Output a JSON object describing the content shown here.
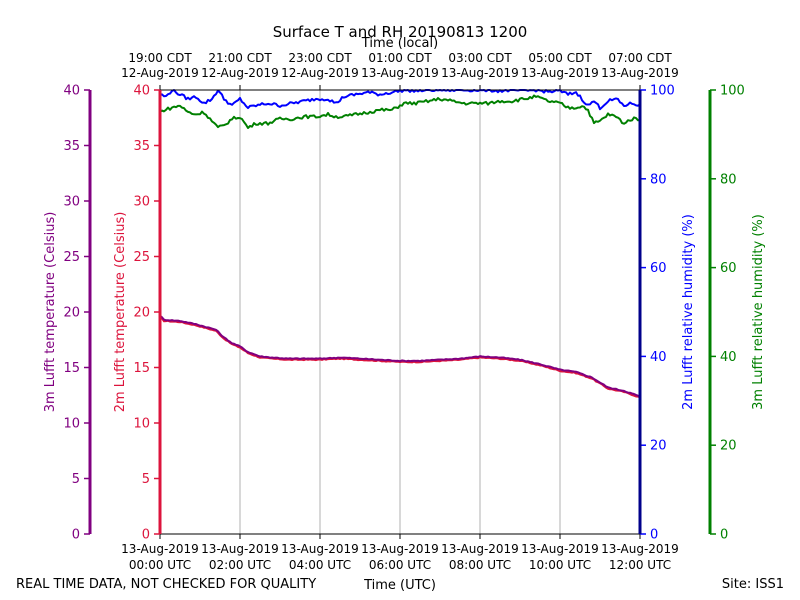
{
  "chart_data": {
    "type": "line",
    "title": "Surface T and RH 20190813 1200",
    "xlabel": "Time (UTC)",
    "xlabel_top": "Time (local)",
    "xlim": [
      0,
      12
    ],
    "bottom_ticks": [
      {
        "x": 0,
        "line1": "13-Aug-2019",
        "line2": "00:00 UTC"
      },
      {
        "x": 2,
        "line1": "13-Aug-2019",
        "line2": "02:00 UTC"
      },
      {
        "x": 4,
        "line1": "13-Aug-2019",
        "line2": "04:00 UTC"
      },
      {
        "x": 6,
        "line1": "13-Aug-2019",
        "line2": "06:00 UTC"
      },
      {
        "x": 8,
        "line1": "13-Aug-2019",
        "line2": "08:00 UTC"
      },
      {
        "x": 10,
        "line1": "13-Aug-2019",
        "line2": "10:00 UTC"
      },
      {
        "x": 12,
        "line1": "13-Aug-2019",
        "line2": "12:00 UTC"
      }
    ],
    "top_ticks": [
      {
        "x": 0,
        "line1": "19:00 CDT",
        "line2": "12-Aug-2019"
      },
      {
        "x": 2,
        "line1": "21:00 CDT",
        "line2": "12-Aug-2019"
      },
      {
        "x": 4,
        "line1": "23:00 CDT",
        "line2": "12-Aug-2019"
      },
      {
        "x": 6,
        "line1": "01:00 CDT",
        "line2": "13-Aug-2019"
      },
      {
        "x": 8,
        "line1": "03:00 CDT",
        "line2": "13-Aug-2019"
      },
      {
        "x": 10,
        "line1": "05:00 CDT",
        "line2": "13-Aug-2019"
      },
      {
        "x": 12,
        "line1": "07:00 CDT",
        "line2": "13-Aug-2019"
      }
    ],
    "axes": [
      {
        "id": "t3m",
        "label": "3m Lufft temperature (Celsius)",
        "color": "#800080",
        "ylim": [
          0,
          40
        ],
        "ticks": [
          0,
          5,
          10,
          15,
          20,
          25,
          30,
          35,
          40
        ]
      },
      {
        "id": "t2m",
        "label": "2m Lufft temperature (Celsius)",
        "color": "#dc143c",
        "ylim": [
          0,
          40
        ],
        "ticks": [
          0,
          5,
          10,
          15,
          20,
          25,
          30,
          35,
          40
        ]
      },
      {
        "id": "rh2m",
        "label": "2m Lufft relative humidity (%)",
        "color": "#0000ff",
        "ylim": [
          0,
          100
        ],
        "ticks": [
          0,
          20,
          40,
          60,
          80,
          100
        ]
      },
      {
        "id": "rh3m",
        "label": "3m Lufft relative humidity (%)",
        "color": "#008000",
        "ylim": [
          0,
          100
        ],
        "ticks": [
          0,
          20,
          40,
          60,
          80,
          100
        ]
      }
    ],
    "series": [
      {
        "name": "3m Lufft temperature",
        "axis": "t3m",
        "color": "#800080",
        "x": [
          0,
          0.1,
          0.5,
          0.9,
          1.2,
          1.4,
          1.6,
          1.8,
          2.0,
          2.2,
          2.5,
          2.8,
          3.2,
          3.6,
          4.0,
          4.5,
          5.0,
          5.5,
          6.0,
          6.5,
          7.0,
          7.5,
          8.0,
          8.5,
          9.0,
          9.5,
          10.0,
          10.4,
          10.8,
          11.2,
          11.6,
          12.0
        ],
        "values": [
          19.7,
          19.3,
          19.2,
          18.9,
          18.6,
          18.4,
          17.7,
          17.2,
          16.9,
          16.4,
          16.0,
          15.9,
          15.8,
          15.8,
          15.8,
          15.9,
          15.8,
          15.7,
          15.6,
          15.6,
          15.7,
          15.8,
          16.0,
          15.9,
          15.7,
          15.3,
          14.8,
          14.6,
          14.1,
          13.2,
          12.9,
          12.4
        ]
      },
      {
        "name": "2m Lufft temperature",
        "axis": "t2m",
        "color": "#dc143c",
        "x": [
          0,
          0.1,
          0.5,
          0.9,
          1.2,
          1.4,
          1.6,
          1.8,
          2.0,
          2.2,
          2.5,
          2.8,
          3.2,
          3.6,
          4.0,
          4.5,
          5.0,
          5.5,
          6.0,
          6.5,
          7.0,
          7.5,
          8.0,
          8.5,
          9.0,
          9.5,
          10.0,
          10.4,
          10.8,
          11.2,
          11.6,
          12.0
        ],
        "values": [
          19.6,
          19.2,
          19.1,
          18.8,
          18.5,
          18.3,
          17.6,
          17.1,
          16.8,
          16.3,
          15.9,
          15.8,
          15.7,
          15.7,
          15.7,
          15.8,
          15.7,
          15.6,
          15.5,
          15.5,
          15.6,
          15.7,
          15.9,
          15.8,
          15.6,
          15.2,
          14.7,
          14.5,
          14.0,
          13.1,
          12.8,
          12.3
        ]
      },
      {
        "name": "2m Lufft relative humidity",
        "axis": "rh2m",
        "color": "#0000ff",
        "x": [
          0,
          0.15,
          0.3,
          0.5,
          0.7,
          0.9,
          1.1,
          1.3,
          1.45,
          1.6,
          1.8,
          2.0,
          2.2,
          2.4,
          2.7,
          3.0,
          3.3,
          3.6,
          3.9,
          4.2,
          4.4,
          4.6,
          4.9,
          5.2,
          5.5,
          5.8,
          6.1,
          6.4,
          6.7,
          7.0,
          7.3,
          7.6,
          7.9,
          8.2,
          8.5,
          8.8,
          9.1,
          9.4,
          9.7,
          10.0,
          10.2,
          10.4,
          10.55,
          10.7,
          10.85,
          11.0,
          11.2,
          11.4,
          11.6,
          11.8,
          12.0
        ],
        "values": [
          99,
          98.5,
          100,
          99,
          98,
          98.5,
          97,
          98,
          100,
          98,
          96.5,
          98,
          96,
          96.5,
          97,
          96.5,
          97,
          97.5,
          98,
          98,
          97,
          98.5,
          99,
          99.5,
          99,
          99.5,
          100,
          99.8,
          100,
          100,
          100,
          100,
          100,
          100,
          99.8,
          100,
          99.8,
          100,
          99.6,
          99.8,
          99,
          99.5,
          98,
          96.5,
          97.5,
          96,
          97.5,
          98,
          96.5,
          97,
          96.5
        ]
      },
      {
        "name": "3m Lufft relative humidity",
        "axis": "rh3m",
        "color": "#008000",
        "x": [
          0,
          0.1,
          0.3,
          0.5,
          0.7,
          0.9,
          1.1,
          1.3,
          1.45,
          1.6,
          1.8,
          2.0,
          2.2,
          2.4,
          2.7,
          3.0,
          3.3,
          3.6,
          3.9,
          4.2,
          4.4,
          4.6,
          4.9,
          5.2,
          5.5,
          5.8,
          6.1,
          6.4,
          6.7,
          7.0,
          7.3,
          7.6,
          7.9,
          8.2,
          8.5,
          8.8,
          9.1,
          9.4,
          9.7,
          10.0,
          10.2,
          10.4,
          10.55,
          10.7,
          10.85,
          11.0,
          11.2,
          11.4,
          11.6,
          11.8,
          12.0
        ],
        "values": [
          95,
          95.5,
          96,
          96.5,
          95,
          94.5,
          95,
          93,
          91.5,
          92,
          93.5,
          94,
          91.5,
          92.5,
          92.5,
          93.5,
          93.5,
          94,
          94,
          94.5,
          94,
          94,
          94.5,
          95,
          95.5,
          95.5,
          97,
          97,
          97.5,
          98,
          97.5,
          97,
          97,
          97,
          97.5,
          97.5,
          98,
          98.5,
          97.5,
          97,
          96,
          96,
          96.5,
          95.5,
          92.5,
          93,
          94.5,
          94,
          92.5,
          93.5,
          93.5
        ]
      }
    ]
  },
  "footer": {
    "left_note": "REAL TIME DATA, NOT CHECKED FOR QUALITY",
    "site": "Site: ISS1"
  }
}
